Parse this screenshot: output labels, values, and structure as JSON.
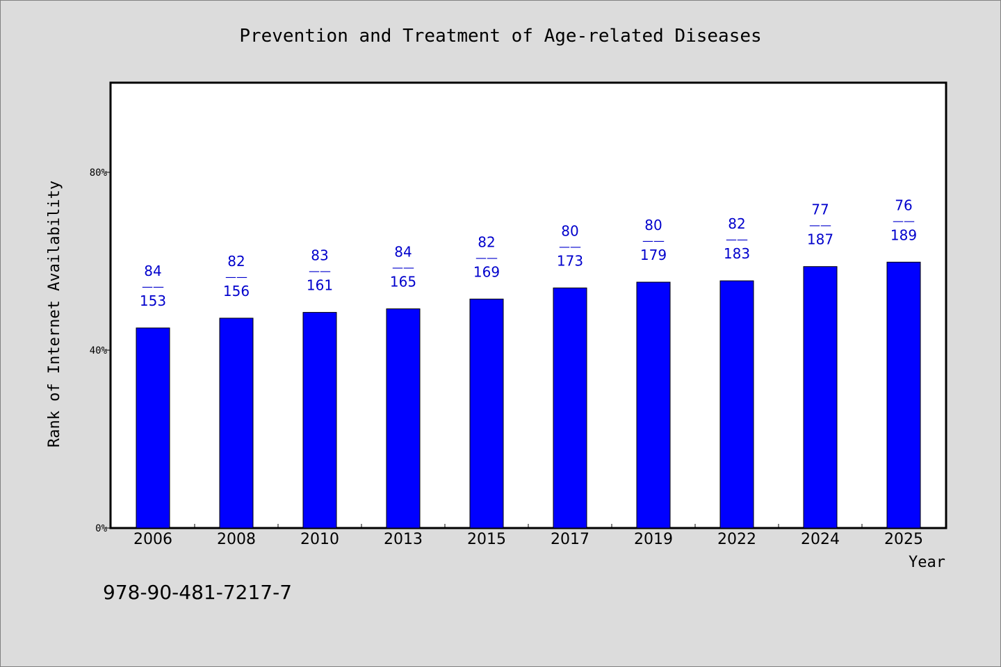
{
  "chart_data": {
    "type": "bar",
    "title": "Prevention and Treatment of Age-related Diseases",
    "xlabel": "Year",
    "ylabel": "Rank of Internet Availability",
    "categories": [
      "2006",
      "2008",
      "2010",
      "2013",
      "2015",
      "2017",
      "2019",
      "2022",
      "2024",
      "2025"
    ],
    "values": [
      45,
      47.2,
      48.5,
      49.3,
      51.5,
      54.0,
      55.3,
      55.6,
      58.8,
      59.8
    ],
    "label_numerators": [
      "84",
      "82",
      "83",
      "84",
      "82",
      "80",
      "80",
      "82",
      "77",
      "76"
    ],
    "label_denominators": [
      "153",
      "156",
      "161",
      "165",
      "169",
      "173",
      "179",
      "183",
      "187",
      "189"
    ],
    "label_separator": "——",
    "ylim": [
      0,
      100
    ],
    "yticks": [
      0,
      40,
      80
    ],
    "ytick_labels": [
      "0%",
      "40%",
      "80%"
    ],
    "bar_color": "#0000ff",
    "label_color": "#0000cc",
    "grid": false,
    "legend": "none"
  },
  "footer": {
    "isbn": "978-90-481-7217-7"
  }
}
